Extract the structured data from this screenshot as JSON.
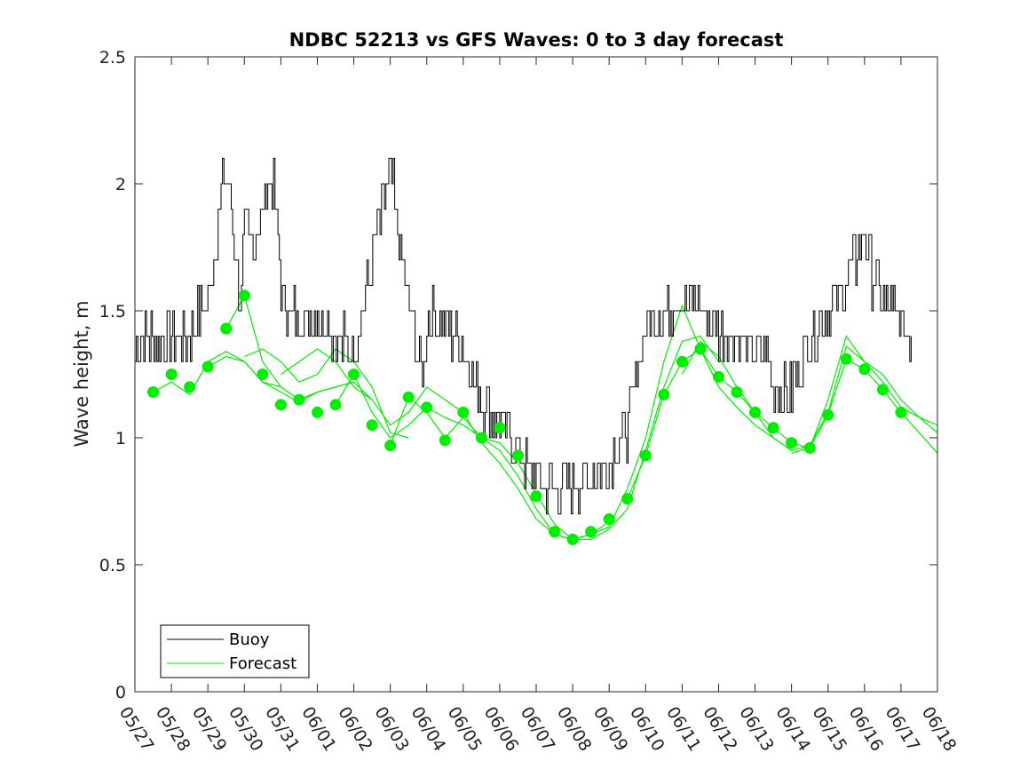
{
  "chart_data": {
    "type": "line",
    "title": "NDBC 52213 vs GFS Waves: 0 to 3 day forecast",
    "xlabel": "",
    "ylabel": "Wave height, m",
    "xlim": [
      "05/27",
      "06/18"
    ],
    "ylim": [
      0,
      2.5
    ],
    "x_tick_labels": [
      "05/27",
      "05/28",
      "05/29",
      "05/30",
      "05/31",
      "06/01",
      "06/02",
      "06/03",
      "06/04",
      "06/05",
      "06/06",
      "06/07",
      "06/08",
      "06/09",
      "06/10",
      "06/11",
      "06/12",
      "06/13",
      "06/14",
      "06/15",
      "06/16",
      "06/17",
      "06/18"
    ],
    "y_tick_labels": [
      "0",
      "0.5",
      "1",
      "1.5",
      "2",
      "2.5"
    ],
    "y_ticks": [
      0,
      0.5,
      1,
      1.5,
      2,
      2.5
    ],
    "grid": false,
    "legend_position": "bottom-left",
    "colors": {
      "buoy": "#000000",
      "forecast": "#00ee00"
    },
    "legend": [
      {
        "label": "Buoy",
        "color": "#000000"
      },
      {
        "label": "Forecast",
        "color": "#00ee00"
      }
    ],
    "buoy": {
      "name": "Buoy",
      "days": [
        0,
        0.5,
        1,
        1.5,
        2,
        2.25,
        2.5,
        2.75,
        2.9,
        3,
        3.25,
        3.5,
        3.75,
        4,
        4.25,
        4.5,
        4.75,
        5,
        5.25,
        5.5,
        6,
        6.5,
        7,
        7.5,
        7.9,
        8,
        8.25,
        8.5,
        9,
        9.5,
        10,
        10.5,
        11,
        11.5,
        12,
        12.5,
        13,
        13.5,
        14,
        14.5,
        15,
        15.5,
        16,
        16.5,
        17,
        17.25,
        17.5,
        17.75,
        18,
        18.5,
        19,
        19.5,
        20,
        20.25,
        20.5,
        20.75,
        21,
        21.3
      ],
      "values": [
        1.35,
        1.4,
        1.4,
        1.4,
        1.55,
        1.85,
        2.05,
        1.75,
        1.5,
        1.8,
        1.75,
        1.9,
        2.05,
        1.6,
        1.5,
        1.45,
        1.45,
        1.5,
        1.45,
        1.4,
        1.35,
        1.7,
        2.05,
        1.5,
        1.25,
        1.5,
        1.45,
        1.45,
        1.35,
        1.15,
        1.05,
        0.95,
        0.85,
        0.8,
        0.8,
        0.85,
        0.9,
        1.05,
        1.45,
        1.5,
        1.55,
        1.5,
        1.4,
        1.4,
        1.3,
        1.35,
        1.2,
        1.15,
        1.2,
        1.4,
        1.5,
        1.6,
        1.8,
        1.6,
        1.55,
        1.5,
        1.45,
        1.4
      ]
    },
    "forecast_markers": {
      "name": "Forecast",
      "days": [
        0.5,
        1,
        1.5,
        2,
        2.5,
        3,
        3.5,
        4,
        4.5,
        5,
        5.5,
        6,
        6.5,
        7,
        7.5,
        8,
        8.5,
        9,
        9.5,
        10,
        10.5,
        11,
        11.5,
        12,
        12.5,
        13,
        13.5,
        14,
        14.5,
        15,
        15.5,
        16,
        16.5,
        17,
        17.5,
        18,
        18.5,
        19,
        19.5,
        20,
        20.5,
        21
      ],
      "values": [
        1.18,
        1.25,
        1.2,
        1.28,
        1.43,
        1.56,
        1.25,
        1.13,
        1.15,
        1.1,
        1.13,
        1.25,
        1.05,
        0.97,
        1.16,
        1.12,
        0.99,
        1.1,
        1.0,
        1.04,
        0.93,
        0.77,
        0.63,
        0.6,
        0.63,
        0.68,
        0.76,
        0.93,
        1.17,
        1.3,
        1.35,
        1.24,
        1.18,
        1.1,
        1.04,
        0.98,
        0.96,
        1.09,
        1.31,
        1.27,
        1.19,
        1.1
      ]
    },
    "forecast_runs": [
      {
        "days": [
          0.5,
          1,
          1.5,
          2,
          2.5,
          3,
          3.5,
          4
        ],
        "values": [
          1.18,
          1.22,
          1.17,
          1.3,
          1.34,
          1.3,
          1.22,
          1.2
        ]
      },
      {
        "days": [
          2,
          2.5,
          3,
          3.5,
          4,
          4.5,
          5,
          5.5,
          6
        ],
        "values": [
          1.28,
          1.32,
          1.3,
          1.22,
          1.18,
          1.14,
          1.18,
          1.2,
          1.22
        ]
      },
      {
        "days": [
          2.5,
          3,
          3.5,
          4,
          4.5,
          5,
          5.5,
          6,
          6.5
        ],
        "values": [
          1.43,
          1.56,
          1.3,
          1.2,
          1.15,
          1.18,
          1.2,
          1.22,
          1.15
        ]
      },
      {
        "days": [
          3,
          3.5,
          4,
          4.5,
          5,
          5.5,
          6,
          6.5,
          7,
          7.5
        ],
        "values": [
          1.32,
          1.35,
          1.3,
          1.22,
          1.25,
          1.35,
          1.3,
          1.2,
          1.02,
          1.0
        ]
      },
      {
        "days": [
          4,
          4.5,
          5,
          5.5,
          6,
          6.5,
          7,
          7.5,
          8,
          8.5,
          9
        ],
        "values": [
          1.25,
          1.3,
          1.35,
          1.3,
          1.2,
          1.15,
          1.05,
          1.1,
          1.2,
          1.15,
          1.1
        ]
      },
      {
        "days": [
          5.5,
          6,
          6.5,
          7,
          7.5,
          8,
          8.5,
          9,
          9.5,
          10,
          10.5,
          11,
          11.5,
          12,
          12.5,
          13
        ],
        "values": [
          1.13,
          1.25,
          1.1,
          1.0,
          1.05,
          1.12,
          1.08,
          1.05,
          1.0,
          0.98,
          0.9,
          0.78,
          0.66,
          0.6,
          0.62,
          0.67
        ]
      },
      {
        "days": [
          7,
          7.5,
          8,
          8.5,
          9,
          9.5,
          10,
          10.5,
          11,
          11.5,
          12,
          12.5,
          13,
          13.5,
          14,
          14.5,
          15,
          15.5,
          16
        ],
        "values": [
          0.97,
          1.16,
          1.1,
          1.0,
          1.08,
          1.0,
          0.95,
          0.85,
          0.72,
          0.62,
          0.6,
          0.6,
          0.64,
          0.72,
          0.95,
          1.2,
          1.38,
          1.4,
          1.3
        ]
      },
      {
        "days": [
          9,
          9.5,
          10,
          10.5,
          11,
          11.5,
          12,
          12.5,
          13,
          13.5,
          14,
          14.5,
          15,
          15.5,
          16,
          16.5,
          17,
          17.5,
          18
        ],
        "values": [
          1.1,
          0.98,
          0.9,
          0.8,
          0.68,
          0.62,
          0.6,
          0.62,
          0.65,
          0.8,
          1.0,
          1.3,
          1.52,
          1.35,
          1.2,
          1.12,
          1.05,
          1.0,
          0.95
        ]
      },
      {
        "days": [
          13.5,
          14,
          14.5,
          15,
          15.5,
          16,
          16.5,
          17,
          17.5,
          18,
          18.5,
          19,
          19.5,
          20,
          20.5,
          21,
          21.5,
          22
        ],
        "values": [
          0.76,
          0.93,
          1.17,
          1.3,
          1.35,
          1.24,
          1.18,
          1.1,
          1.04,
          0.98,
          0.96,
          1.09,
          1.31,
          1.27,
          1.19,
          1.1,
          1.02,
          0.94
        ]
      },
      {
        "days": [
          15,
          15.5,
          16,
          16.5,
          17,
          17.5,
          18,
          18.5,
          19,
          19.5,
          20,
          20.5,
          21,
          21.5,
          22
        ],
        "values": [
          1.25,
          1.38,
          1.32,
          1.2,
          1.1,
          1.0,
          0.95,
          0.97,
          1.1,
          1.36,
          1.3,
          1.22,
          1.12,
          1.08,
          1.05
        ]
      },
      {
        "days": [
          18,
          18.5,
          19,
          19.5,
          20,
          20.5,
          21,
          21.5,
          22
        ],
        "values": [
          0.94,
          0.96,
          1.15,
          1.4,
          1.3,
          1.25,
          1.15,
          1.08,
          1.02
        ]
      }
    ]
  }
}
